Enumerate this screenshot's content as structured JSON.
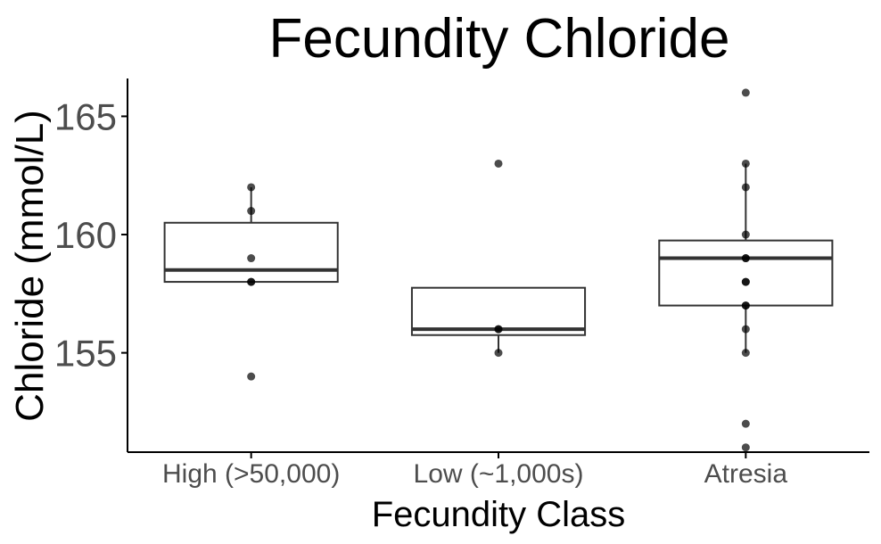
{
  "chart_data": {
    "type": "boxplot",
    "title": "Fecundity Chloride",
    "xlabel": "Fecundity Class",
    "ylabel": "Chloride (mmol/L)",
    "ylim": [
      150.8,
      166.6
    ],
    "yticks": [
      155,
      160,
      165
    ],
    "grid": false,
    "categories": [
      "High (>50,000)",
      "Low (~1,000s)",
      "Atresia"
    ],
    "boxes": [
      {
        "q1": 158.0,
        "median": 158.5,
        "q3": 160.5,
        "whisker_low": 158.0,
        "whisker_high": 162.0
      },
      {
        "q1": 155.75,
        "median": 156.0,
        "q3": 157.75,
        "whisker_low": 155.0,
        "whisker_high": 157.75
      },
      {
        "q1": 157.0,
        "median": 159.0,
        "q3": 159.75,
        "whisker_low": 155.0,
        "whisker_high": 163.0
      }
    ],
    "points": [
      [
        162,
        161,
        159,
        158,
        158,
        154
      ],
      [
        163,
        156,
        156,
        155
      ],
      [
        166,
        163,
        162,
        160,
        159,
        159,
        158,
        158,
        157,
        157,
        156,
        155,
        152,
        151
      ]
    ],
    "colors": {
      "box_fill": "#ffffff",
      "box_line": "#333333",
      "point": "#000000",
      "axis": "#000000"
    }
  }
}
